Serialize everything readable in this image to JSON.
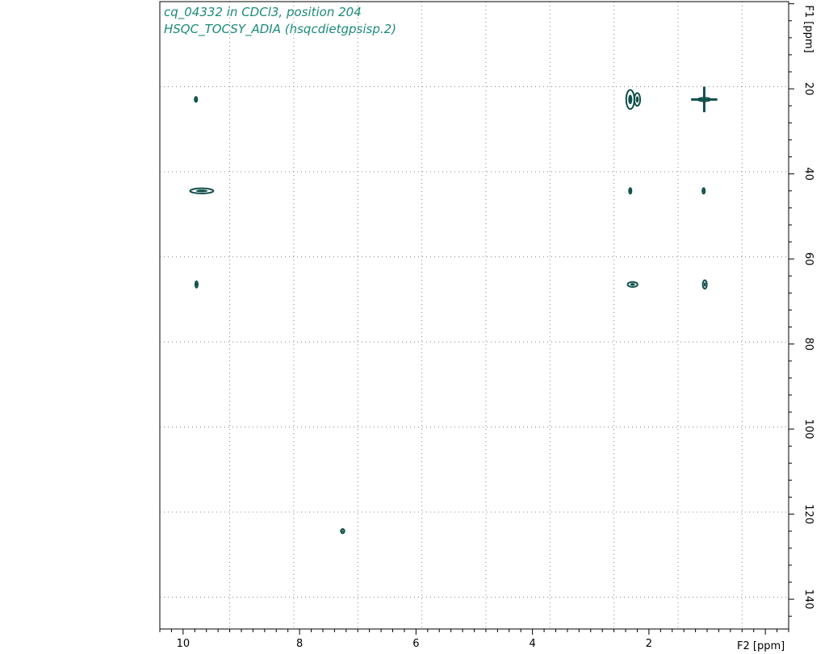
{
  "chart_data": {
    "type": "scatter",
    "title": "cq_04332 in CDCl3, position 204",
    "subtitle": "HSQC_TOCSY_ADIA (hsqcdietgpsisp.2)",
    "xlabel": "F2 [ppm]",
    "ylabel": "F1 [ppm]",
    "xlim": [
      10.4,
      -0.4
    ],
    "ylim": [
      -0.5,
      147
    ],
    "x_ticks": [
      10,
      8,
      6,
      4,
      2
    ],
    "y_ticks": [
      20,
      40,
      60,
      80,
      100,
      120,
      140
    ],
    "x_grid": [
      9.2,
      8.1,
      7.0,
      5.9,
      4.8,
      3.7,
      2.6,
      1.5,
      0.4
    ],
    "y_grid": [
      19.5,
      39.5,
      59.5,
      79.5,
      99.5,
      119.5,
      139.5
    ],
    "grid": true,
    "series": [
      {
        "values": [
          {
            "x": 9.78,
            "y": 22.5,
            "w": 0.03,
            "h": 1.2
          },
          {
            "x": 2.32,
            "y": 22.5,
            "w": 0.14,
            "h": 4.5
          },
          {
            "x": 2.2,
            "y": 22.5,
            "w": 0.1,
            "h": 3.0
          },
          {
            "x": 1.05,
            "y": 22.5,
            "w": 0.45,
            "h": 6.0
          },
          {
            "x": 9.68,
            "y": 44.0,
            "w": 0.4,
            "h": 1.2
          },
          {
            "x": 2.32,
            "y": 44.0,
            "w": 0.04,
            "h": 1.3
          },
          {
            "x": 1.06,
            "y": 44.0,
            "w": 0.03,
            "h": 1.3
          },
          {
            "x": 9.77,
            "y": 66.0,
            "w": 0.03,
            "h": 1.5
          },
          {
            "x": 2.28,
            "y": 66.0,
            "w": 0.17,
            "h": 1.2
          },
          {
            "x": 1.04,
            "y": 66.0,
            "w": 0.07,
            "h": 2.0
          },
          {
            "x": 7.26,
            "y": 124.0,
            "w": 0.06,
            "h": 1.0
          }
        ]
      }
    ],
    "color": "#10504a"
  }
}
